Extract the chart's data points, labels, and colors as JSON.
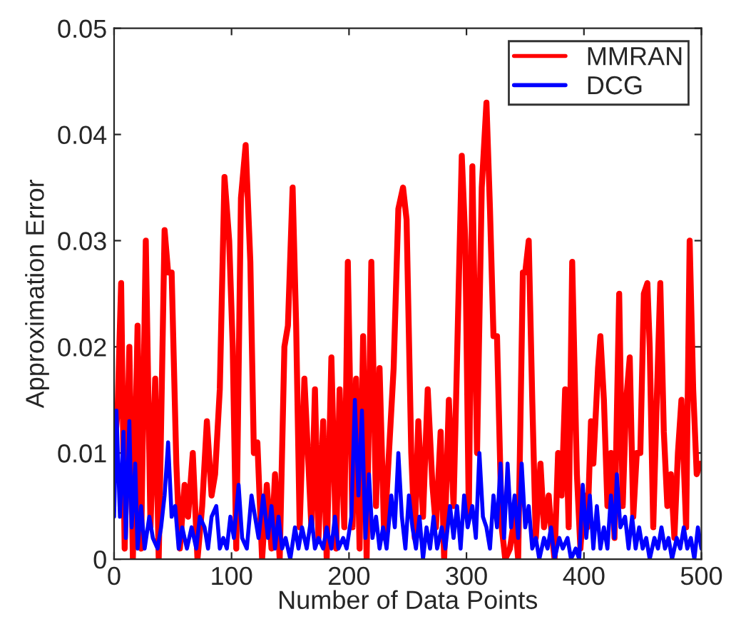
{
  "chart_data": {
    "type": "line",
    "xlabel": "Number of Data Points",
    "ylabel": "Approximation Error",
    "xlim": [
      0,
      500
    ],
    "ylim": [
      0,
      0.05
    ],
    "xticks": [
      0,
      100,
      200,
      300,
      400,
      500
    ],
    "yticks": [
      0,
      0.01,
      0.02,
      0.03,
      0.04,
      0.05
    ],
    "grid": false,
    "legend": "top right",
    "marker": "none",
    "line_style": "solid",
    "series": [
      {
        "name": "MMRAN",
        "color": "#ff0000",
        "x": [
          0,
          3,
          6,
          9,
          13,
          16,
          20,
          23,
          27,
          31,
          35,
          38,
          43,
          46,
          49,
          53,
          56,
          60,
          63,
          67,
          71,
          75,
          79,
          83,
          86,
          90,
          94,
          98,
          101,
          104,
          108,
          112,
          116,
          119,
          122,
          126,
          130,
          134,
          137,
          141,
          145,
          148,
          152,
          155,
          158,
          162,
          165,
          168,
          171,
          174,
          178,
          181,
          185,
          189,
          192,
          196,
          199,
          203,
          206,
          209,
          212,
          215,
          219,
          223,
          226,
          230,
          234,
          238,
          242,
          246,
          249,
          253,
          256,
          259,
          263,
          267,
          271,
          274,
          278,
          281,
          285,
          289,
          292,
          296,
          299,
          302,
          305,
          309,
          313,
          317,
          320,
          323,
          326,
          330,
          333,
          337,
          341,
          344,
          348,
          350,
          353,
          356,
          359,
          363,
          366,
          370,
          372,
          375,
          378,
          381,
          384,
          387,
          390,
          394,
          397,
          400,
          403,
          406,
          408,
          412,
          414,
          417,
          420,
          423,
          426,
          430,
          433,
          436,
          439,
          442,
          445,
          448,
          451,
          454,
          456,
          459,
          462,
          465,
          468,
          471,
          474,
          477,
          480,
          483,
          487,
          490,
          493,
          496,
          499
        ],
        "values": [
          0.01,
          0.014,
          0.026,
          0.001,
          0.02,
          0.0,
          0.022,
          0.001,
          0.03,
          0.003,
          0.017,
          0.0,
          0.031,
          0.027,
          0.027,
          0.009,
          0.001,
          0.007,
          0.004,
          0.01,
          0.0,
          0.005,
          0.013,
          0.006,
          0.008,
          0.016,
          0.036,
          0.03,
          0.02,
          0.001,
          0.034,
          0.039,
          0.028,
          0.01,
          0.011,
          0.0,
          0.007,
          0.001,
          0.008,
          0.0,
          0.02,
          0.022,
          0.035,
          0.022,
          0.003,
          0.017,
          0.01,
          0.003,
          0.016,
          0.002,
          0.013,
          0.0,
          0.019,
          0.001,
          0.016,
          0.003,
          0.028,
          0.003,
          0.017,
          0.001,
          0.021,
          0.0,
          0.028,
          0.005,
          0.018,
          0.002,
          0.01,
          0.018,
          0.033,
          0.035,
          0.032,
          0.01,
          0.002,
          0.013,
          0.004,
          0.016,
          0.007,
          0.003,
          0.012,
          0.0,
          0.015,
          0.005,
          0.019,
          0.038,
          0.03,
          0.004,
          0.037,
          0.01,
          0.035,
          0.043,
          0.033,
          0.021,
          0.021,
          0.003,
          0.0,
          0.001,
          0.004,
          0.0,
          0.027,
          0.027,
          0.03,
          0.015,
          0.002,
          0.009,
          0.003,
          0.006,
          0.003,
          0.0,
          0.01,
          0.006,
          0.016,
          0.003,
          0.028,
          0.008,
          0.001,
          0.006,
          0.003,
          0.013,
          0.009,
          0.018,
          0.021,
          0.015,
          0.005,
          0.01,
          0.002,
          0.025,
          0.005,
          0.015,
          0.019,
          0.004,
          0.01,
          0.01,
          0.025,
          0.026,
          0.02,
          0.003,
          0.015,
          0.026,
          0.012,
          0.005,
          0.008,
          0.002,
          0.01,
          0.015,
          0.003,
          0.03,
          0.016,
          0.008,
          0.009
        ]
      },
      {
        "name": "DCG",
        "color": "#0000ff",
        "x": [
          0,
          2,
          5,
          8,
          10,
          13,
          15,
          18,
          20,
          23,
          26,
          30,
          33,
          37,
          40,
          43,
          46,
          49,
          52,
          55,
          58,
          62,
          66,
          70,
          73,
          77,
          80,
          83,
          87,
          90,
          93,
          96,
          99,
          102,
          106,
          109,
          113,
          117,
          120,
          123,
          127,
          131,
          134,
          137,
          140,
          143,
          146,
          150,
          154,
          157,
          160,
          164,
          168,
          171,
          174,
          178,
          181,
          185,
          188,
          191,
          195,
          198,
          202,
          205,
          208,
          211,
          214,
          217,
          220,
          223,
          226,
          229,
          232,
          236,
          239,
          242,
          245,
          248,
          251,
          254,
          257,
          260,
          263,
          266,
          269,
          272,
          275,
          279,
          282,
          286,
          289,
          292,
          295,
          298,
          301,
          305,
          308,
          311,
          314,
          317,
          320,
          323,
          326,
          329,
          332,
          335,
          338,
          341,
          344,
          347,
          350,
          353,
          356,
          359,
          362,
          366,
          369,
          372,
          375,
          379,
          382,
          386,
          389,
          393,
          396,
          399,
          402,
          405,
          408,
          411,
          414,
          417,
          420,
          423,
          426,
          428,
          431,
          435,
          438,
          441,
          444,
          447,
          450,
          453,
          456,
          460,
          463,
          466,
          469,
          472,
          475,
          479,
          482,
          485,
          488,
          491,
          494,
          497,
          500
        ],
        "values": [
          0.004,
          0.014,
          0.004,
          0.012,
          0.002,
          0.013,
          0.003,
          0.009,
          0.001,
          0.005,
          0.001,
          0.004,
          0.002,
          0.001,
          0.003,
          0.006,
          0.011,
          0.004,
          0.005,
          0.001,
          0.003,
          0.001,
          0.003,
          0.001,
          0.004,
          0.003,
          0.001,
          0.004,
          0.005,
          0.001,
          0.002,
          0.001,
          0.004,
          0.002,
          0.007,
          0.002,
          0.001,
          0.006,
          0.004,
          0.002,
          0.006,
          0.002,
          0.005,
          0.001,
          0.004,
          0.001,
          0.002,
          0.0,
          0.003,
          0.001,
          0.003,
          0.001,
          0.004,
          0.001,
          0.002,
          0.001,
          0.003,
          0.001,
          0.004,
          0.001,
          0.002,
          0.001,
          0.004,
          0.015,
          0.006,
          0.014,
          0.002,
          0.008,
          0.002,
          0.004,
          0.001,
          0.003,
          0.001,
          0.006,
          0.003,
          0.01,
          0.004,
          0.001,
          0.006,
          0.003,
          0.001,
          0.004,
          0.0,
          0.003,
          0.001,
          0.004,
          0.001,
          0.003,
          0.001,
          0.005,
          0.002,
          0.005,
          0.001,
          0.006,
          0.003,
          0.005,
          0.002,
          0.01,
          0.004,
          0.003,
          0.001,
          0.006,
          0.003,
          0.009,
          0.002,
          0.009,
          0.003,
          0.006,
          0.002,
          0.009,
          0.003,
          0.005,
          0.001,
          0.002,
          0.0,
          0.002,
          0.001,
          0.003,
          0.0,
          0.002,
          0.001,
          0.002,
          0.0,
          0.001,
          0.0,
          0.007,
          0.002,
          0.006,
          0.001,
          0.005,
          0.001,
          0.003,
          0.001,
          0.006,
          0.002,
          0.008,
          0.003,
          0.004,
          0.001,
          0.004,
          0.001,
          0.003,
          0.001,
          0.002,
          0.0,
          0.002,
          0.001,
          0.003,
          0.001,
          0.002,
          0.0,
          0.002,
          0.001,
          0.003,
          0.001,
          0.002,
          0.0,
          0.003,
          0.001
        ]
      }
    ]
  }
}
